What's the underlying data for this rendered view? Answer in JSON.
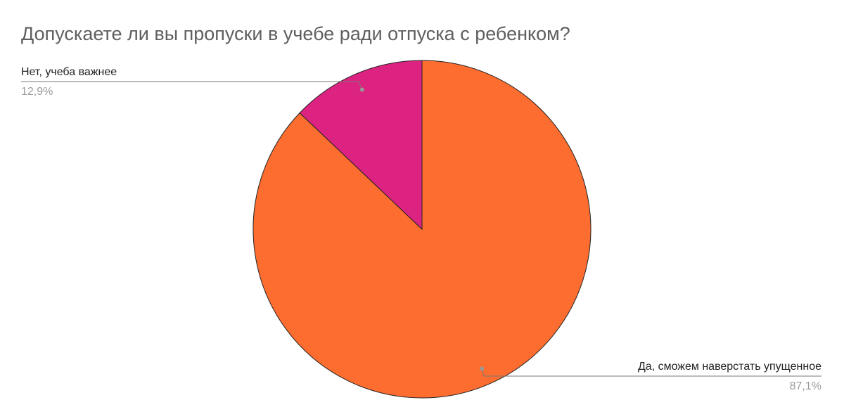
{
  "chart_data": {
    "type": "pie",
    "title": "Допускаете ли вы пропуски в учебе ради отпуска с ребенком?",
    "categories": [
      "Да, сможем наверстать упущенное",
      "Нет, учеба важнее"
    ],
    "values": [
      87.1,
      12.9
    ],
    "value_labels": [
      "87,1%",
      "12,9%"
    ],
    "colors": [
      "#fd6d30",
      "#dd2381"
    ]
  }
}
